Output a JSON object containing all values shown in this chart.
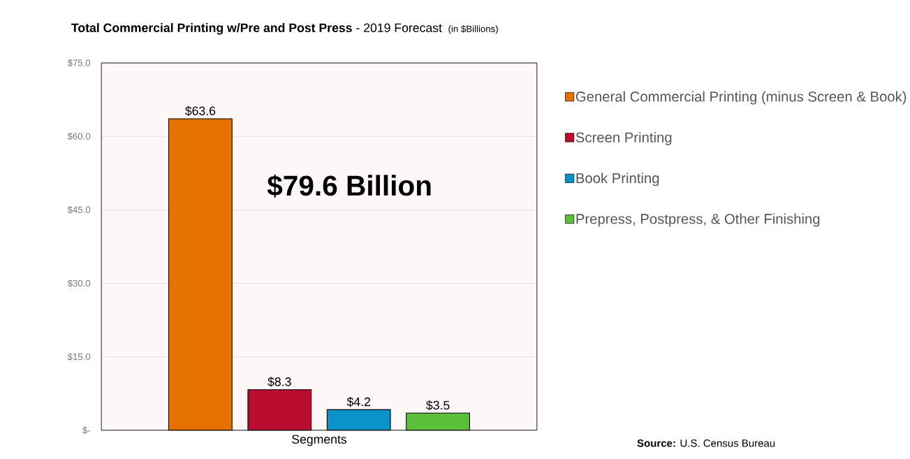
{
  "chart_data": {
    "type": "bar",
    "title": "**Total Commercial Printing w/Pre and Post Press** - 2019 Forecast",
    "subtitle": "(in $Billions)",
    "xlabel": "Segments",
    "categories": [
      null,
      null,
      null,
      null
    ],
    "series": [
      {
        "name": "General Commercial Printing (minus Screen & Book)",
        "color": "#e57200",
        "values": [
          63.6,
          null,
          null,
          null
        ],
        "value_labels": [
          "$63.6",
          null,
          null,
          null
        ]
      },
      {
        "name": "Screen Printing",
        "color": "#b90e30",
        "values": [
          null,
          8.3,
          null,
          null
        ],
        "value_labels": [
          null,
          "$8.3",
          null,
          null
        ]
      },
      {
        "name": "Book Printing",
        "color": "#0a93c8",
        "values": [
          null,
          null,
          4.2,
          null
        ],
        "value_labels": [
          null,
          null,
          "$4.2",
          null
        ]
      },
      {
        "name": "Prepress, Postpress, & Other Finishing",
        "color": "#5cbf3a",
        "values": [
          null,
          null,
          null,
          3.5
        ],
        "value_labels": [
          null,
          null,
          null,
          "$3.5"
        ]
      }
    ],
    "ylim": [
      0,
      75
    ],
    "yticks": [
      {
        "value": 0,
        "label": "$-"
      },
      {
        "value": 15,
        "label": "$15.0"
      },
      {
        "value": 30,
        "label": "$30.0"
      },
      {
        "value": 45,
        "label": "$45.0"
      },
      {
        "value": 60,
        "label": "$60.0"
      },
      {
        "value": 75,
        "label": "$75.0"
      }
    ],
    "grid": "y",
    "legend": "right",
    "tick_labels": "y",
    "marker": "square",
    "annotations": [
      "$79.6 Billion",
      "**Source:** U.S. Census Bureau"
    ]
  }
}
